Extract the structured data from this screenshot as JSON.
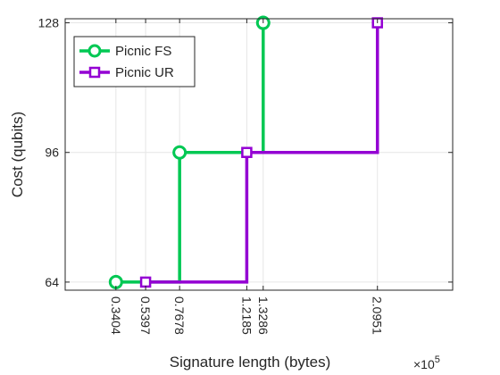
{
  "chart_data": {
    "type": "line",
    "step": "stairs",
    "xlabel": "Signature length (bytes)",
    "ylabel": "Cost (qubits)",
    "x_exponent": "×10",
    "x_exponent_power": "5",
    "xlim": [
      0,
      2.6
    ],
    "ylim": [
      62,
      129
    ],
    "grid": true,
    "legend_location": "top-left",
    "xticks": [
      0.3404,
      0.5397,
      0.7678,
      1.2185,
      1.3286,
      2.0951
    ],
    "xtick_labels": [
      "0.3404",
      "0.5397",
      "0.7678",
      "1.2185",
      "1.3286",
      "2.0951"
    ],
    "yticks": [
      64,
      96,
      128
    ],
    "ytick_labels": [
      "64",
      "96",
      "128"
    ],
    "series": [
      {
        "name": "Picnic FS",
        "color": "#00c853",
        "marker": "circle",
        "points": [
          {
            "x": 0.3404,
            "y": 64
          },
          {
            "x": 0.7678,
            "y": 96
          },
          {
            "x": 1.3286,
            "y": 128
          }
        ]
      },
      {
        "name": "Picnic UR",
        "color": "#9400d3",
        "marker": "square",
        "points": [
          {
            "x": 0.5397,
            "y": 64
          },
          {
            "x": 1.2185,
            "y": 96
          },
          {
            "x": 2.0951,
            "y": 128
          }
        ]
      }
    ]
  }
}
